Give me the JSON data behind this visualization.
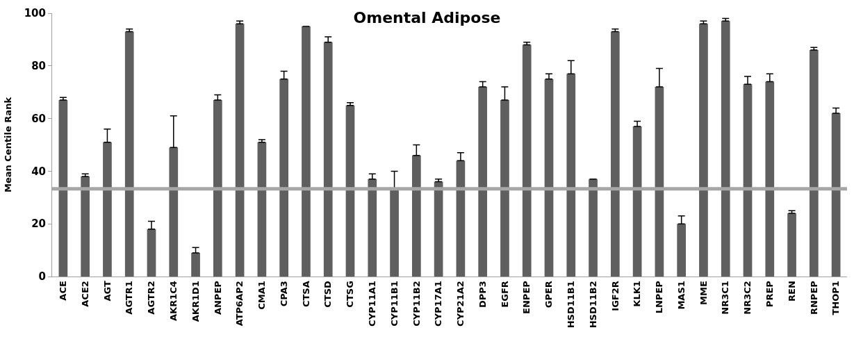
{
  "chart_data": {
    "type": "bar",
    "title": "Omental Adipose",
    "ylabel": "Mean Centile Rank",
    "categories": [
      "ACE",
      "ACE2",
      "AGT",
      "AGTR1",
      "AGTR2",
      "AKR1C4",
      "AKR1D1",
      "ANPEP",
      "ATP6AP2",
      "CMA1",
      "CPA3",
      "CTSA",
      "CTSD",
      "CTSG",
      "CYP11A1",
      "CYP11B1",
      "CYP11B2",
      "CYP17A1",
      "CYP21A2",
      "DPP3",
      "EGFR",
      "ENPEP",
      "GPER",
      "HSD11B1",
      "HSD11B2",
      "IGF2R",
      "KLK1",
      "LNPEP",
      "MAS1",
      "MME",
      "NR3C1",
      "NR3C2",
      "PREP",
      "REN",
      "RNPEP",
      "THOP1"
    ],
    "values": [
      67,
      38,
      51,
      93,
      18,
      49,
      9,
      67,
      96,
      51,
      75,
      95,
      89,
      65,
      37,
      33,
      46,
      36,
      44,
      72,
      67,
      88,
      75,
      77,
      37,
      93,
      57,
      72,
      20,
      96,
      97,
      73,
      74,
      24,
      86,
      62
    ],
    "errors": [
      [
        67,
        68
      ],
      [
        38,
        39
      ],
      [
        51,
        56
      ],
      [
        93,
        94
      ],
      [
        18,
        21
      ],
      [
        49,
        61
      ],
      [
        9,
        11
      ],
      [
        67,
        69
      ],
      [
        96,
        97
      ],
      [
        51,
        52
      ],
      [
        75,
        78
      ],
      null,
      [
        89,
        91
      ],
      [
        65,
        66
      ],
      [
        37,
        39
      ],
      [
        33,
        40
      ],
      [
        46,
        50
      ],
      [
        36,
        37
      ],
      [
        44,
        47
      ],
      [
        72,
        74
      ],
      [
        67,
        72
      ],
      [
        88,
        89
      ],
      [
        75,
        77
      ],
      [
        77,
        82
      ],
      null,
      [
        93,
        94
      ],
      [
        57,
        59
      ],
      [
        72,
        79
      ],
      [
        20,
        23
      ],
      [
        96,
        97
      ],
      [
        97,
        98
      ],
      [
        73,
        76
      ],
      [
        74,
        77
      ],
      [
        24,
        25
      ],
      [
        86,
        87
      ],
      [
        62,
        64
      ]
    ],
    "color": "#5f5f5f",
    "ylim": [
      0,
      100
    ],
    "yticks": [
      0,
      20,
      40,
      60,
      80,
      100
    ],
    "grid": false,
    "legend": false,
    "ref_lines": [
      {
        "axis": "y",
        "value": 33.3,
        "color": "#a6a6a6"
      }
    ]
  }
}
